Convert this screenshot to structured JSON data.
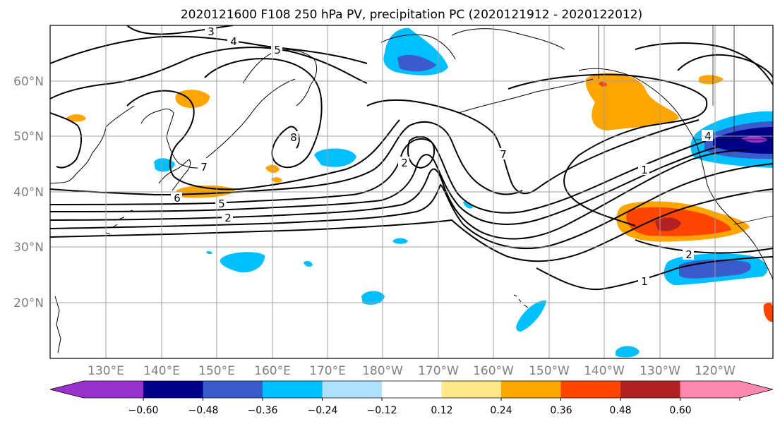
{
  "title": "2020121600 F108 250 hPa PV, precipitation PC (2020121912 - 2020122012)",
  "map": {
    "lat_labels": [
      "60°N",
      "50°N",
      "40°N",
      "30°N",
      "20°N"
    ],
    "lon_labels": [
      "130°E",
      "140°E",
      "150°E",
      "160°E",
      "170°E",
      "180°W",
      "170°W",
      "160°W",
      "150°W",
      "140°W",
      "130°W",
      "120°W"
    ],
    "gridlines": true,
    "contour_labels": [
      "3",
      "4",
      "5",
      "8",
      "7",
      "6",
      "5",
      "2",
      "2",
      "7",
      "1",
      "4",
      "2",
      "1"
    ],
    "colors": {
      "contour": "#000000",
      "grid": "#a0a0a0",
      "tick_label": "#808080"
    }
  },
  "colorbar": {
    "tick_labels": [
      "−0.60",
      "−0.48",
      "−0.36",
      "−0.24",
      "−0.12",
      "0.12",
      "0.24",
      "0.36",
      "0.48",
      "0.60"
    ],
    "colors": [
      "#9932cc",
      "#00008b",
      "#3a5bcc",
      "#00bfff",
      "#b0e0ff",
      "#ffffff",
      "#ffe88a",
      "#ffa500",
      "#ff4500",
      "#b22222",
      "#ff88b0"
    ]
  }
}
